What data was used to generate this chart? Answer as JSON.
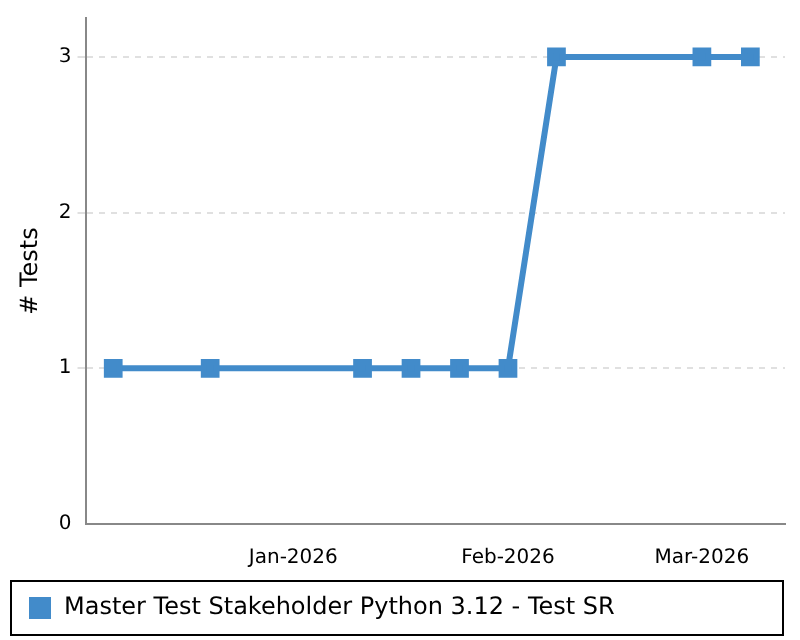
{
  "chart_data": {
    "type": "line",
    "ylabel": "# Tests",
    "x": [
      "2025-12-06",
      "2025-12-20",
      "2026-01-11",
      "2026-01-18",
      "2026-01-25",
      "2026-02-01",
      "2026-02-08",
      "2026-03-01",
      "2026-03-08"
    ],
    "series": [
      {
        "name": "Master Test Stakeholder Python 3.12 - Test SR",
        "color": "#428bca",
        "values": [
          1,
          1,
          1,
          1,
          1,
          1,
          3,
          3,
          3
        ]
      }
    ],
    "xlim": [
      "2025-12-02",
      "2026-03-13"
    ],
    "xticks": [
      {
        "value": "2026-01-01",
        "label": "Jan-2026"
      },
      {
        "value": "2026-02-01",
        "label": "Feb-2026"
      },
      {
        "value": "2026-03-01",
        "label": "Mar-2026"
      }
    ],
    "ylim": [
      0,
      3.25
    ],
    "yticks": [
      0,
      1,
      2,
      3
    ],
    "grid": "y",
    "legend": "bottom",
    "marker": "square",
    "line_style": "solid"
  }
}
